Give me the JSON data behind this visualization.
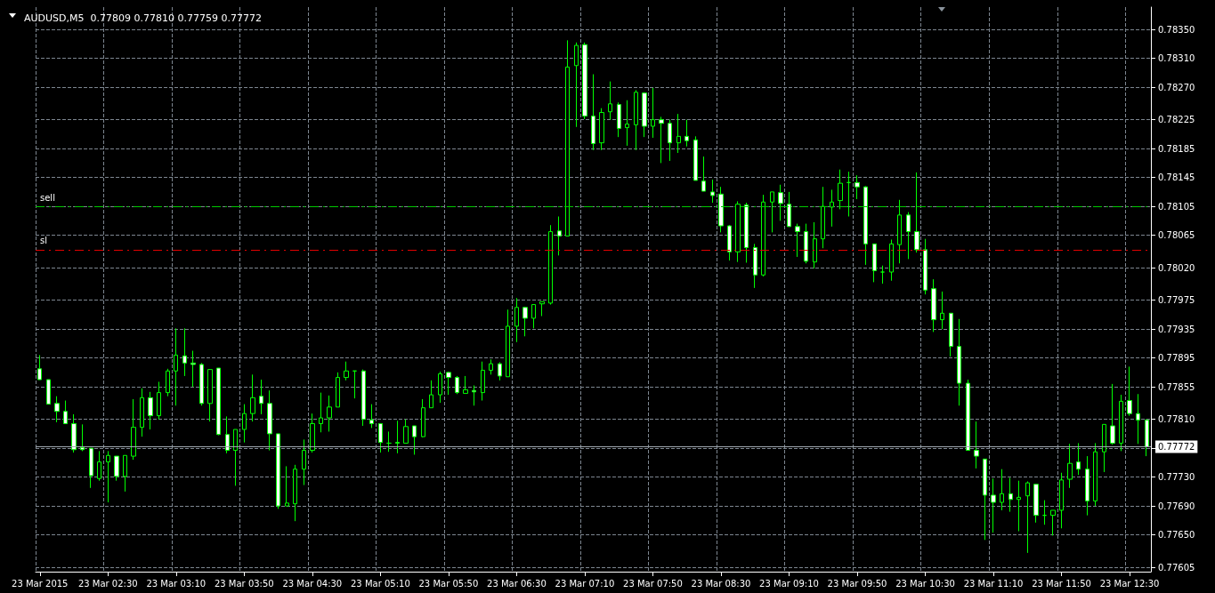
{
  "chart_data": {
    "type": "candlestick",
    "title": "AUDUSD,M5  0.77809 0.77810 0.77759 0.77772",
    "color": "#00ff00",
    "categories": [
      "23 Mar 2015",
      null,
      null,
      null,
      null,
      null,
      null,
      null,
      "23 Mar 02:30",
      null,
      null,
      null,
      null,
      null,
      null,
      null,
      "23 Mar 03:10",
      null,
      null,
      null,
      null,
      null,
      null,
      null,
      "23 Mar 03:50",
      null,
      null,
      null,
      null,
      null,
      null,
      null,
      "23 Mar 04:30",
      null,
      null,
      null,
      null,
      null,
      null,
      null,
      "23 Mar 05:10",
      null,
      null,
      null,
      null,
      null,
      null,
      null,
      "23 Mar 05:50",
      null,
      null,
      null,
      null,
      null,
      null,
      null,
      "23 Mar 06:30",
      null,
      null,
      null,
      null,
      null,
      null,
      null,
      "23 Mar 07:10",
      null,
      null,
      null,
      null,
      null,
      null,
      null,
      "23 Mar 07:50",
      null,
      null,
      null,
      null,
      null,
      null,
      null,
      "23 Mar 08:30",
      null,
      null,
      null,
      null,
      null,
      null,
      null,
      "23 Mar 09:10",
      null,
      null,
      null,
      null,
      null,
      null,
      null,
      "23 Mar 09:50",
      null,
      null,
      null,
      null,
      null,
      null,
      null,
      "23 Mar 10:30",
      null,
      null,
      null,
      null,
      null,
      null,
      null,
      "23 Mar 11:10",
      null,
      null,
      null,
      null,
      null,
      null,
      null,
      "23 Mar 11:50",
      null,
      null,
      null,
      null,
      null,
      null,
      null,
      "23 Mar 12:30",
      null,
      null
    ],
    "ohlc": [
      [
        0.7788,
        0.77899,
        0.77865,
        0.77865
      ],
      [
        0.77865,
        0.77865,
        0.77831,
        0.77831
      ],
      [
        0.77832,
        0.77842,
        0.77806,
        0.77821
      ],
      [
        0.77821,
        0.77836,
        0.77804,
        0.77804
      ],
      [
        0.77804,
        0.77817,
        0.77764,
        0.77768
      ],
      [
        0.77771,
        0.77803,
        0.77766,
        0.77768
      ],
      [
        0.7777,
        0.7777,
        0.77715,
        0.77732
      ],
      [
        0.77728,
        0.77766,
        0.77725,
        0.77751
      ],
      [
        0.77751,
        0.77766,
        0.77695,
        0.7776
      ],
      [
        0.77759,
        0.77759,
        0.77725,
        0.77731
      ],
      [
        0.77731,
        0.7776,
        0.7771,
        0.7776
      ],
      [
        0.77759,
        0.77838,
        0.77754,
        0.77799
      ],
      [
        0.77799,
        0.77853,
        0.77786,
        0.7784
      ],
      [
        0.7784,
        0.77848,
        0.77796,
        0.77815
      ],
      [
        0.77815,
        0.77862,
        0.7781,
        0.77847
      ],
      [
        0.77847,
        0.7788,
        0.77842,
        0.77877
      ],
      [
        0.77877,
        0.77936,
        0.77829,
        0.77899
      ],
      [
        0.77898,
        0.77936,
        0.7787,
        0.77888
      ],
      [
        0.77888,
        0.77905,
        0.77855,
        0.77886
      ],
      [
        0.77886,
        0.77888,
        0.77829,
        0.77832
      ],
      [
        0.77832,
        0.77879,
        0.77807,
        0.77879
      ],
      [
        0.77881,
        0.77881,
        0.77788,
        0.77789
      ],
      [
        0.77789,
        0.77814,
        0.77763,
        0.77767
      ],
      [
        0.77767,
        0.77796,
        0.77718,
        0.77796
      ],
      [
        0.77796,
        0.77831,
        0.77778,
        0.77818
      ],
      [
        0.77818,
        0.77872,
        0.77807,
        0.7784
      ],
      [
        0.77842,
        0.77865,
        0.77817,
        0.77832
      ],
      [
        0.77832,
        0.7785,
        0.77767,
        0.7779
      ],
      [
        0.7779,
        0.7779,
        0.77686,
        0.7769
      ],
      [
        0.7769,
        0.77745,
        0.7769,
        0.77694
      ],
      [
        0.77693,
        0.77747,
        0.77669,
        0.77741
      ],
      [
        0.77741,
        0.77782,
        0.77719,
        0.77767
      ],
      [
        0.77767,
        0.77818,
        0.77764,
        0.77804
      ],
      [
        0.77804,
        0.77847,
        0.77792,
        0.77812
      ],
      [
        0.77812,
        0.77843,
        0.77793,
        0.77827
      ],
      [
        0.77827,
        0.77875,
        0.77827,
        0.77868
      ],
      [
        0.77868,
        0.7789,
        0.77864,
        0.77877
      ],
      [
        0.77877,
        0.77877,
        0.77839,
        0.77877
      ],
      [
        0.77877,
        0.77879,
        0.77801,
        0.7781
      ],
      [
        0.77809,
        0.77831,
        0.77798,
        0.77804
      ],
      [
        0.77804,
        0.77804,
        0.77764,
        0.77778
      ],
      [
        0.77777,
        0.77793,
        0.77765,
        0.77777
      ],
      [
        0.77778,
        0.77808,
        0.77763,
        0.77777
      ],
      [
        0.77777,
        0.7781,
        0.77777,
        0.778
      ],
      [
        0.77801,
        0.77801,
        0.77761,
        0.77786
      ],
      [
        0.77786,
        0.77838,
        0.77785,
        0.77826
      ],
      [
        0.77826,
        0.77864,
        0.77826,
        0.77844
      ],
      [
        0.77844,
        0.77876,
        0.77833,
        0.77873
      ],
      [
        0.77875,
        0.77876,
        0.77844,
        0.77868
      ],
      [
        0.77868,
        0.7787,
        0.77845,
        0.77847
      ],
      [
        0.77846,
        0.7787,
        0.77846,
        0.77851
      ],
      [
        0.7785,
        0.77857,
        0.77829,
        0.77848
      ],
      [
        0.77847,
        0.7789,
        0.77836,
        0.77878
      ],
      [
        0.77878,
        0.77893,
        0.77872,
        0.77887
      ],
      [
        0.77887,
        0.77889,
        0.77864,
        0.7787
      ],
      [
        0.77869,
        0.77962,
        0.77869,
        0.77939
      ],
      [
        0.77939,
        0.77978,
        0.77917,
        0.77965
      ],
      [
        0.77965,
        0.77966,
        0.77925,
        0.7795
      ],
      [
        0.7795,
        0.77969,
        0.77936,
        0.77969
      ],
      [
        0.7797,
        0.77973,
        0.77953,
        0.77973
      ],
      [
        0.77971,
        0.78079,
        0.77969,
        0.7807
      ],
      [
        0.78071,
        0.78091,
        0.78037,
        0.78064
      ],
      [
        0.78064,
        0.78335,
        0.78064,
        0.78298
      ],
      [
        0.783,
        0.78332,
        0.78215,
        0.78328
      ],
      [
        0.78329,
        0.78332,
        0.78226,
        0.7823
      ],
      [
        0.7823,
        0.78288,
        0.78183,
        0.78192
      ],
      [
        0.78193,
        0.78241,
        0.78183,
        0.78235
      ],
      [
        0.78236,
        0.78278,
        0.78225,
        0.78247
      ],
      [
        0.78246,
        0.78249,
        0.78201,
        0.78213
      ],
      [
        0.78214,
        0.78252,
        0.78189,
        0.78219
      ],
      [
        0.78218,
        0.78266,
        0.78183,
        0.78263
      ],
      [
        0.78262,
        0.78263,
        0.78201,
        0.78216
      ],
      [
        0.78216,
        0.78269,
        0.782,
        0.78225
      ],
      [
        0.78225,
        0.78229,
        0.78165,
        0.7822
      ],
      [
        0.7822,
        0.78225,
        0.78168,
        0.78193
      ],
      [
        0.78193,
        0.78233,
        0.78179,
        0.78202
      ],
      [
        0.78202,
        0.78225,
        0.78188,
        0.78196
      ],
      [
        0.78197,
        0.78202,
        0.78141,
        0.78141
      ],
      [
        0.7814,
        0.78174,
        0.78126,
        0.78126
      ],
      [
        0.78125,
        0.78142,
        0.7811,
        0.7812
      ],
      [
        0.78122,
        0.78132,
        0.78069,
        0.78078
      ],
      [
        0.78078,
        0.78079,
        0.7803,
        0.78042
      ],
      [
        0.78042,
        0.78112,
        0.78028,
        0.78108
      ],
      [
        0.78107,
        0.7811,
        0.78027,
        0.78048
      ],
      [
        0.78048,
        0.78053,
        0.77992,
        0.7801
      ],
      [
        0.7801,
        0.78121,
        0.78008,
        0.78111
      ],
      [
        0.78111,
        0.78125,
        0.78069,
        0.78125
      ],
      [
        0.78124,
        0.78135,
        0.78085,
        0.78109
      ],
      [
        0.78108,
        0.78125,
        0.78077,
        0.78077
      ],
      [
        0.78077,
        0.78081,
        0.78035,
        0.7807
      ],
      [
        0.7807,
        0.78081,
        0.78026,
        0.78029
      ],
      [
        0.78028,
        0.78083,
        0.78019,
        0.7806
      ],
      [
        0.7806,
        0.78132,
        0.78047,
        0.78105
      ],
      [
        0.78104,
        0.78128,
        0.78077,
        0.78111
      ],
      [
        0.78113,
        0.78156,
        0.78101,
        0.78137
      ],
      [
        0.78138,
        0.78153,
        0.78091,
        0.78138
      ],
      [
        0.78138,
        0.78148,
        0.78115,
        0.78132
      ],
      [
        0.78132,
        0.78133,
        0.78024,
        0.78053
      ],
      [
        0.78053,
        0.78053,
        0.78,
        0.78016
      ],
      [
        0.78014,
        0.78023,
        0.77998,
        0.78014
      ],
      [
        0.78014,
        0.78059,
        0.78002,
        0.78053
      ],
      [
        0.78052,
        0.78114,
        0.78026,
        0.78093
      ],
      [
        0.78093,
        0.78097,
        0.78032,
        0.7807
      ],
      [
        0.7807,
        0.78152,
        0.78041,
        0.78045
      ],
      [
        0.78045,
        0.7806,
        0.77983,
        0.77989
      ],
      [
        0.77991,
        0.78004,
        0.77931,
        0.77948
      ],
      [
        0.77948,
        0.77987,
        0.77935,
        0.77957
      ],
      [
        0.77957,
        0.77957,
        0.77897,
        0.77911
      ],
      [
        0.77911,
        0.77949,
        0.77829,
        0.7786
      ],
      [
        0.7786,
        0.77865,
        0.77767,
        0.77767
      ],
      [
        0.77767,
        0.77807,
        0.77742,
        0.77759
      ],
      [
        0.77755,
        0.77755,
        0.77643,
        0.77705
      ],
      [
        0.77705,
        0.77728,
        0.77653,
        0.77695
      ],
      [
        0.77695,
        0.77741,
        0.77684,
        0.77707
      ],
      [
        0.77707,
        0.77729,
        0.77682,
        0.77699
      ],
      [
        0.77699,
        0.77725,
        0.77655,
        0.77702
      ],
      [
        0.77704,
        0.77724,
        0.77625,
        0.77722
      ],
      [
        0.7772,
        0.7772,
        0.77667,
        0.77677
      ],
      [
        0.77677,
        0.77698,
        0.77664,
        0.77677
      ],
      [
        0.77677,
        0.77684,
        0.77649,
        0.77684
      ],
      [
        0.77684,
        0.77736,
        0.77659,
        0.77726
      ],
      [
        0.77727,
        0.77776,
        0.77715,
        0.77749
      ],
      [
        0.77751,
        0.77777,
        0.77733,
        0.77741
      ],
      [
        0.77741,
        0.77759,
        0.77677,
        0.77697
      ],
      [
        0.77697,
        0.77777,
        0.7769,
        0.77765
      ],
      [
        0.77765,
        0.77803,
        0.77737,
        0.77803
      ],
      [
        0.77801,
        0.77859,
        0.77775,
        0.77777
      ],
      [
        0.77777,
        0.77844,
        0.77766,
        0.77835
      ],
      [
        0.77836,
        0.77883,
        0.77815,
        0.77818
      ],
      [
        0.77818,
        0.77845,
        0.77776,
        0.77809
      ],
      [
        0.77809,
        0.7781,
        0.77759,
        0.77772
      ]
    ],
    "ylim": [
      0.77599,
      0.78381
    ],
    "yticks": [
      {
        "value": 0.7835,
        "label": "0.78350"
      },
      {
        "value": 0.7831,
        "label": "0.78310"
      },
      {
        "value": 0.7827,
        "label": "0.78270"
      },
      {
        "value": 0.78225,
        "label": "0.78225"
      },
      {
        "value": 0.78185,
        "label": "0.78185"
      },
      {
        "value": 0.78145,
        "label": "0.78145"
      },
      {
        "value": 0.78105,
        "label": "0.78105"
      },
      {
        "value": 0.78065,
        "label": "0.78065"
      },
      {
        "value": 0.7802,
        "label": "0.78020"
      },
      {
        "value": 0.77975,
        "label": "0.77975"
      },
      {
        "value": 0.77935,
        "label": "0.77935"
      },
      {
        "value": 0.77895,
        "label": "0.77895"
      },
      {
        "value": 0.77855,
        "label": "0.77855"
      },
      {
        "value": 0.7781,
        "label": "0.77810"
      },
      {
        "value": 0.7777,
        "label": null
      },
      {
        "value": 0.7773,
        "label": "0.77730"
      },
      {
        "value": 0.7769,
        "label": "0.77690"
      },
      {
        "value": 0.7765,
        "label": "0.77650"
      },
      {
        "value": 0.77605,
        "label": "0.77605"
      }
    ],
    "grid": true,
    "ref_lines": [
      {
        "axis": "y",
        "value": 0.78105,
        "label": "sell",
        "color": "#00c800",
        "line_style": "dashed"
      },
      {
        "axis": "y",
        "value": 0.78045,
        "label": "sl",
        "color": "#e00000",
        "line_style": "dashed"
      },
      {
        "axis": "y",
        "value": 0.77772,
        "label": "0.77772",
        "color": "#a0a8b0",
        "line_style": "solid"
      }
    ]
  }
}
